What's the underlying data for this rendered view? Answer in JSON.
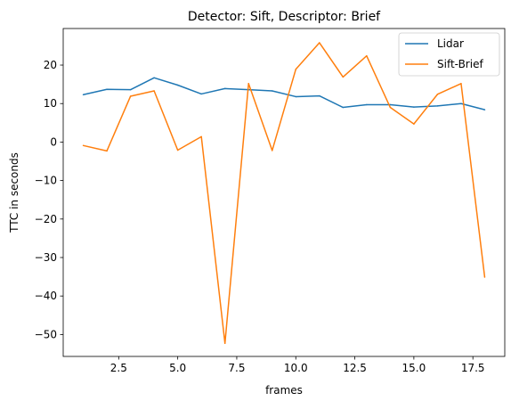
{
  "chart_data": {
    "type": "line",
    "title": "Detector: Sift, Descriptor: Brief",
    "xlabel": "frames",
    "ylabel": "TTC in seconds",
    "xlim": [
      0.15,
      18.85
    ],
    "ylim": [
      -55.7,
      29.5
    ],
    "xticks": [
      2.5,
      5.0,
      7.5,
      10.0,
      12.5,
      15.0,
      17.5
    ],
    "xtick_labels": [
      "2.5",
      "5.0",
      "7.5",
      "10.0",
      "12.5",
      "15.0",
      "17.5"
    ],
    "yticks": [
      -50,
      -40,
      -30,
      -20,
      -10,
      0,
      10,
      20
    ],
    "ytick_labels": [
      "−50",
      "−40",
      "−30",
      "−20",
      "−10",
      "0",
      "10",
      "20"
    ],
    "grid": false,
    "legend_position": "upper-right",
    "x": [
      1,
      2,
      3,
      4,
      5,
      6,
      7,
      8,
      9,
      10,
      11,
      12,
      13,
      14,
      15,
      16,
      17,
      18
    ],
    "series": [
      {
        "name": "Lidar",
        "color": "#1f77b4",
        "values": [
          12.3,
          13.7,
          13.6,
          16.7,
          14.8,
          12.5,
          13.9,
          13.6,
          13.3,
          11.8,
          12.0,
          9.0,
          9.7,
          9.7,
          9.1,
          9.4,
          10.0,
          8.4
        ]
      },
      {
        "name": "Sift-Brief",
        "color": "#ff7f0e",
        "values": [
          -0.9,
          -2.3,
          11.9,
          13.3,
          -2.1,
          1.4,
          -52.3,
          15.2,
          -2.2,
          18.9,
          25.8,
          16.9,
          22.4,
          9.0,
          4.7,
          12.4,
          15.2,
          -35.1
        ]
      }
    ]
  }
}
